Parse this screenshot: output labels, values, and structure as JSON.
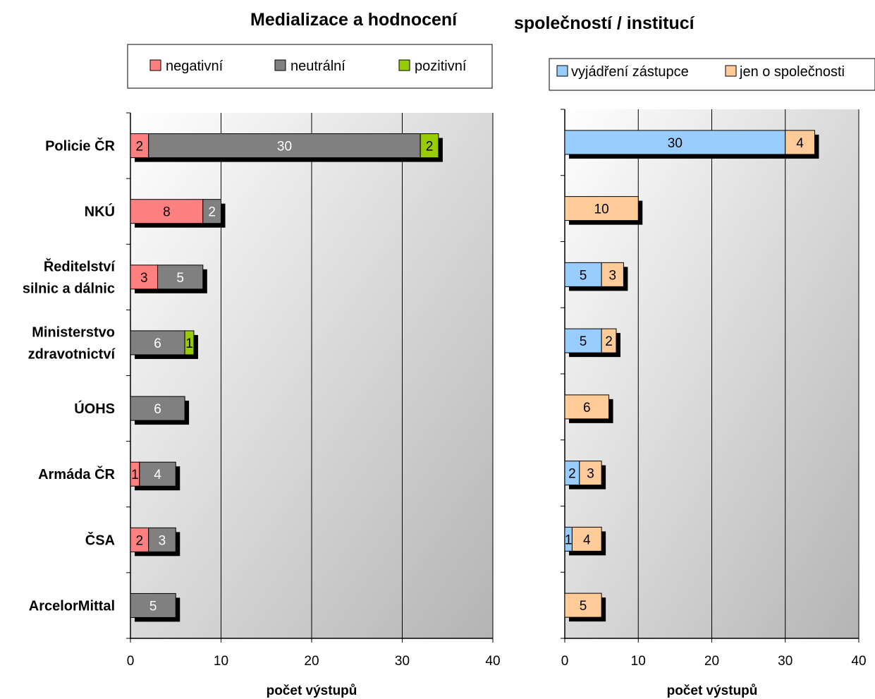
{
  "title_part1": "Medializace a hodnocení",
  "title_part2": "společností / institucí",
  "chart_data": [
    {
      "type": "bar",
      "orientation": "horizontal",
      "stacked": true,
      "categories": [
        "Policie ČR",
        "NKÚ",
        "Ředitelství silnic a dálnic",
        "Ministerstvo zdravotnictví",
        "ÚOHS",
        "Armáda ČR",
        "ČSA",
        "ArcelorMittal"
      ],
      "category_lines": [
        [
          "Policie ČR"
        ],
        [
          "NKÚ"
        ],
        [
          "Ředitelství",
          "silnic a dálnic"
        ],
        [
          "Ministerstvo",
          "zdravotnictví"
        ],
        [
          "ÚOHS"
        ],
        [
          "Armáda ČR"
        ],
        [
          "ČSA"
        ],
        [
          "ArcelorMittal"
        ]
      ],
      "series": [
        {
          "name": "negativní",
          "color": "#ff8080",
          "label_color": "#000000",
          "values": [
            2,
            8,
            3,
            0,
            0,
            1,
            2,
            0
          ]
        },
        {
          "name": "neutrální",
          "color": "#808080",
          "label_color": "#ffffff",
          "values": [
            30,
            2,
            5,
            6,
            6,
            4,
            3,
            5
          ]
        },
        {
          "name": "pozitivní",
          "color": "#99cc00",
          "label_color": "#000000",
          "values": [
            2,
            0,
            0,
            1,
            0,
            0,
            0,
            0
          ]
        }
      ],
      "xlabel": "počet výstupů",
      "xlim": [
        0,
        40
      ],
      "xticks": [
        0,
        10,
        20,
        30,
        40
      ],
      "grid": true,
      "legend": "top"
    },
    {
      "type": "bar",
      "orientation": "horizontal",
      "stacked": true,
      "categories": [
        "Policie ČR",
        "NKÚ",
        "Ředitelství silnic a dálnic",
        "Ministerstvo zdravotnictví",
        "ÚOHS",
        "Armáda ČR",
        "ČSA",
        "ArcelorMittal"
      ],
      "series": [
        {
          "name": "vyjádření zástupce",
          "color": "#99ccff",
          "label_color": "#000000",
          "values": [
            30,
            0,
            5,
            5,
            0,
            2,
            1,
            0
          ]
        },
        {
          "name": "jen o společnosti",
          "color": "#ffcc99",
          "label_color": "#000000",
          "values": [
            4,
            10,
            3,
            2,
            6,
            3,
            4,
            5
          ]
        }
      ],
      "xlabel": "počet výstupů",
      "xlim": [
        0,
        40
      ],
      "xticks": [
        0,
        10,
        20,
        30,
        40
      ],
      "grid": true,
      "legend": "top"
    }
  ]
}
